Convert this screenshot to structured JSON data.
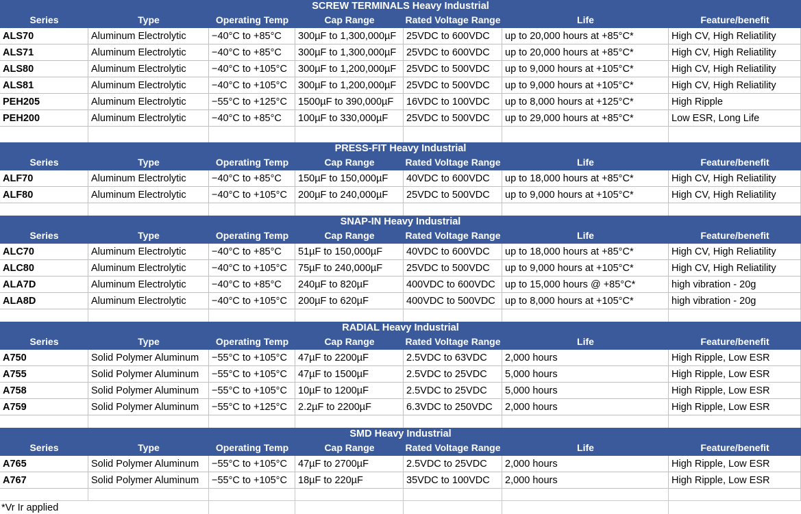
{
  "colors": {
    "header_blue": "#3a5a9c",
    "cell_border": "#bfbfbf",
    "grid_line": "#c9c9c9",
    "header_text": "#ffffff",
    "body_text": "#000000"
  },
  "sheet": {
    "columns": [
      "Series",
      "Type",
      "Operating Temp",
      "Cap Range",
      "Rated Voltage Range",
      "Life",
      "Feature/benefit"
    ],
    "footnote": "*Vr Ir applied",
    "tables": [
      {
        "title": "SCREW TERMINALS Heavy Industrial",
        "rows": [
          [
            "ALS70",
            "Aluminum Electrolytic",
            "−40°C to +85°C",
            "300µF to 1,300,000µF",
            "25VDC to 600VDC",
            "up to 20,000 hours at +85°C*",
            "High CV, High Reliatility"
          ],
          [
            "ALS71",
            "Aluminum Electrolytic",
            "−40°C to +85°C",
            "300µF to 1,300,000µF",
            "25VDC to 600VDC",
            "up to 20,000 hours at +85°C*",
            "High CV, High Reliatility"
          ],
          [
            "ALS80",
            "Aluminum Electrolytic",
            "−40°C to +105°C",
            "300µF to 1,200,000µF",
            "25VDC to 500VDC",
            "up to 9,000 hours at +105°C*",
            "High CV, High Reliatility"
          ],
          [
            "ALS81",
            "Aluminum Electrolytic",
            "−40°C to +105°C",
            "300µF to 1,200,000µF",
            "25VDC to 500VDC",
            "up to 9,000 hours at +105°C*",
            "High CV, High Reliatility"
          ],
          [
            "PEH205",
            "Aluminum Electrolytic",
            "−55°C to +125°C",
            "1500µF to 390,000µF",
            "16VDC to 100VDC",
            "up to 8,000 hours at +125°C*",
            "High Ripple"
          ],
          [
            "PEH200",
            "Aluminum Electrolytic",
            "−40°C to +85°C",
            "100µF to 330,000µF",
            "25VDC to 500VDC",
            "up to 29,000 hours at +85°C*",
            "Low ESR, Long Life"
          ]
        ]
      },
      {
        "title": "PRESS-FIT Heavy Industrial",
        "rows": [
          [
            "ALF70",
            "Aluminum Electrolytic",
            "−40°C to +85°C",
            "150µF to 150,000µF",
            "40VDC to 600VDC",
            "up to 18,000 hours at +85°C*",
            "High CV, High Reliatility"
          ],
          [
            "ALF80",
            "Aluminum Electrolytic",
            "−40°C to +105°C",
            "200µF to 240,000µF",
            "25VDC to 500VDC",
            "up to 9,000 hours at +105°C*",
            "High CV, High Reliatility"
          ]
        ]
      },
      {
        "title": "SNAP-IN Heavy Industrial",
        "rows": [
          [
            "ALC70",
            "Aluminum Electrolytic",
            "−40°C to +85°C",
            "51µF to 150,000µF",
            "40VDC to 600VDC",
            "up to 18,000 hours at +85°C*",
            "High CV, High Reliatility"
          ],
          [
            "ALC80",
            "Aluminum Electrolytic",
            "−40°C to +105°C",
            "75µF to 240,000µF",
            "25VDC to 500VDC",
            "up to 9,000 hours at +105°C*",
            "High CV, High Reliatility"
          ],
          [
            "ALA7D",
            "Aluminum Electrolytic",
            "−40°C to +85°C",
            "240µF to 820µF",
            "400VDC to 600VDC",
            "up to 15,000 hours @ +85°C*",
            "high vibration - 20g"
          ],
          [
            "ALA8D",
            "Aluminum Electrolytic",
            "−40°C to +105°C",
            "200µF to 620µF",
            "400VDC to 500VDC",
            "up to 8,000 hours at +105°C*",
            "high vibration - 20g"
          ]
        ]
      },
      {
        "title": "RADIAL Heavy Industrial",
        "rows": [
          [
            "A750",
            "Solid Polymer Aluminum",
            "−55°C to +105°C",
            "47µF to 2200µF",
            "2.5VDC to 63VDC",
            "2,000 hours",
            "High Ripple, Low ESR"
          ],
          [
            "A755",
            "Solid Polymer Aluminum",
            "−55°C to +105°C",
            "47µF to 1500µF",
            "2.5VDC to 25VDC",
            "5,000 hours",
            "High Ripple, Low ESR"
          ],
          [
            "A758",
            "Solid Polymer Aluminum",
            "−55°C to +105°C",
            "10µF to 1200µF",
            "2.5VDC to 25VDC",
            "5,000 hours",
            "High Ripple, Low ESR"
          ],
          [
            "A759",
            "Solid Polymer Aluminum",
            "−55°C to +125°C",
            "2.2µF to 2200µF",
            "6.3VDC to 250VDC",
            "2,000 hours",
            "High Ripple, Low ESR"
          ]
        ]
      },
      {
        "title": "SMD Heavy Industrial",
        "rows": [
          [
            "A765",
            "Solid Polymer Aluminum",
            "−55°C to +105°C",
            "47µF to 2700µF",
            "2.5VDC to 25VDC",
            "2,000 hours",
            "High Ripple, Low ESR"
          ],
          [
            "A767",
            "Solid Polymer Aluminum",
            "−55°C to +105°C",
            "18µF to 220µF",
            "35VDC to 100VDC",
            "2,000 hours",
            "High Ripple, Low ESR"
          ]
        ]
      }
    ]
  }
}
